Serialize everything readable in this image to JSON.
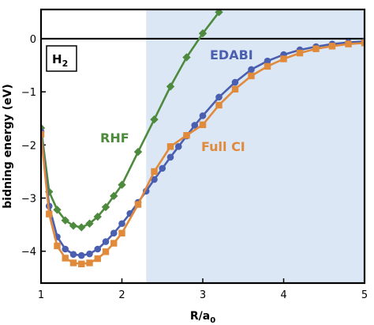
{
  "chart_data": {
    "type": "line",
    "title": "",
    "xlabel_main": "R/a",
    "xlabel_sub": "0",
    "ylabel": "bidning energy (eV)",
    "xlim": [
      1,
      5
    ],
    "ylim": [
      -4.6,
      0.55
    ],
    "x_ticks": [
      1,
      2,
      3,
      4,
      5
    ],
    "x_tick_labels": [
      "1",
      "2",
      "3",
      "4",
      "5"
    ],
    "y_ticks": [
      0,
      -1,
      -2,
      -3,
      -4
    ],
    "y_tick_labels": [
      "0",
      "−1",
      "−2",
      "−3",
      "−4"
    ],
    "zero_line": 0,
    "shaded_region": {
      "x_from": 2.3,
      "x_to": 5,
      "color": "#dbe7f5"
    },
    "inset_label_main": "H",
    "inset_label_sub": "2",
    "series": [
      {
        "name": "RHF",
        "color": "#4e8a3e",
        "marker": "diamond",
        "x": [
          1.0,
          1.1,
          1.2,
          1.3,
          1.4,
          1.5,
          1.6,
          1.7,
          1.8,
          1.9,
          2.0,
          2.2,
          2.4,
          2.6,
          2.8,
          3.0,
          3.2
        ],
        "y": [
          -1.68,
          -2.88,
          -3.22,
          -3.42,
          -3.52,
          -3.55,
          -3.48,
          -3.35,
          -3.17,
          -2.96,
          -2.75,
          -2.13,
          -1.52,
          -0.9,
          -0.35,
          0.1,
          0.5
        ]
      },
      {
        "name": "EDABI",
        "color": "#4a5fb0",
        "marker": "circle",
        "x": [
          1.0,
          1.1,
          1.2,
          1.3,
          1.4,
          1.5,
          1.6,
          1.7,
          1.8,
          1.9,
          2.0,
          2.1,
          2.2,
          2.3,
          2.4,
          2.5,
          2.6,
          2.7,
          2.8,
          2.9,
          3.0,
          3.2,
          3.4,
          3.6,
          3.8,
          4.0,
          4.2,
          4.4,
          4.6,
          4.8,
          5.0
        ],
        "y": [
          -1.75,
          -3.15,
          -3.73,
          -3.96,
          -4.06,
          -4.08,
          -4.05,
          -3.96,
          -3.82,
          -3.66,
          -3.48,
          -3.29,
          -3.08,
          -2.87,
          -2.65,
          -2.44,
          -2.23,
          -2.03,
          -1.83,
          -1.63,
          -1.45,
          -1.1,
          -0.82,
          -0.58,
          -0.42,
          -0.3,
          -0.21,
          -0.15,
          -0.1,
          -0.07,
          -0.05
        ]
      },
      {
        "name": "Full CI",
        "color": "#e08a3c",
        "marker": "square",
        "x": [
          1.0,
          1.1,
          1.2,
          1.3,
          1.4,
          1.5,
          1.6,
          1.7,
          1.8,
          1.9,
          2.0,
          2.2,
          2.4,
          2.6,
          2.8,
          3.0,
          3.2,
          3.4,
          3.6,
          3.8,
          4.0,
          4.2,
          4.4,
          4.6,
          4.8,
          5.0
        ],
        "y": [
          -1.8,
          -3.3,
          -3.9,
          -4.13,
          -4.22,
          -4.24,
          -4.22,
          -4.14,
          -4.01,
          -3.85,
          -3.66,
          -3.12,
          -2.5,
          -2.03,
          -1.82,
          -1.62,
          -1.25,
          -0.95,
          -0.7,
          -0.52,
          -0.38,
          -0.27,
          -0.19,
          -0.14,
          -0.1,
          -0.08
        ]
      }
    ]
  }
}
